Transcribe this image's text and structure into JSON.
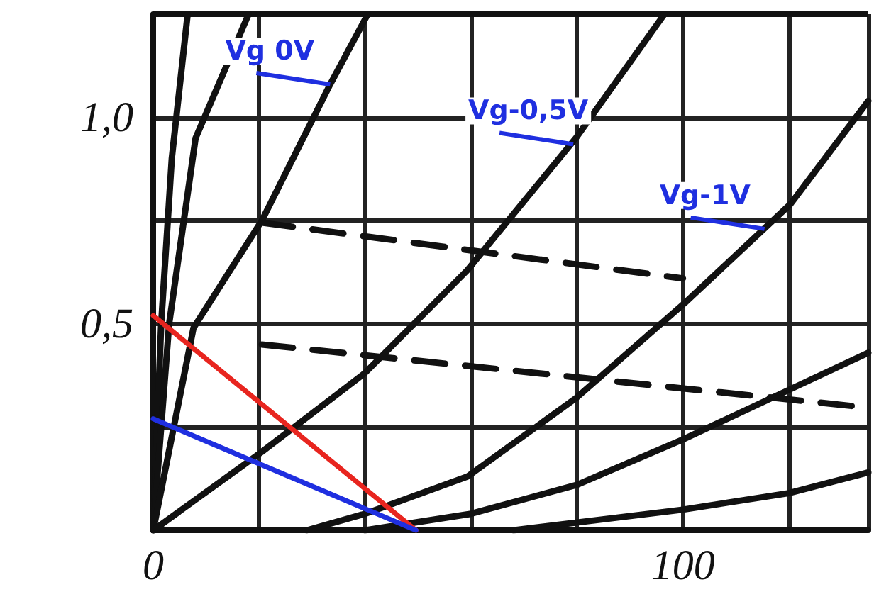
{
  "chart_data": {
    "type": "line",
    "xlim": [
      0,
      135
    ],
    "ylim": [
      0,
      1.25
    ],
    "xticks": [
      {
        "value": 0,
        "label": "0"
      },
      {
        "value": 20,
        "label": null
      },
      {
        "value": 40,
        "label": null
      },
      {
        "value": 60,
        "label": null
      },
      {
        "value": 80,
        "label": null
      },
      {
        "value": 100,
        "label": "100"
      },
      {
        "value": 120,
        "label": null
      }
    ],
    "yticks": [
      {
        "value": 0,
        "label": null
      },
      {
        "value": 0.25,
        "label": null
      },
      {
        "value": 0.5,
        "label": "0,5"
      },
      {
        "value": 0.75,
        "label": null
      },
      {
        "value": 1,
        "label": "1,0"
      },
      {
        "value": 1.25,
        "label": null
      }
    ],
    "grid": true,
    "marker": "none",
    "series": [
      {
        "color": "#111111",
        "x": [
          0,
          1.5,
          3.5,
          6.5
        ],
        "values": [
          0,
          0.5,
          0.9,
          1.25
        ]
      },
      {
        "color": "#111111",
        "x": [
          0,
          3,
          8,
          18
        ],
        "values": [
          0,
          0.5,
          0.95,
          1.25
        ]
      },
      {
        "color": "#111111",
        "x": [
          0,
          7.6,
          20.5,
          33.4,
          40.5
        ],
        "values": [
          0,
          0.49,
          0.75,
          1.08,
          1.25
        ]
      },
      {
        "color": "#111111",
        "x": [
          0,
          20.5,
          39.9,
          59.3,
          79.8,
          96.5
        ],
        "values": [
          0,
          0.19,
          0.38,
          0.63,
          0.95,
          1.25
        ]
      },
      {
        "color": "#111111",
        "x": [
          29,
          40,
          59.3,
          79.8,
          100.3,
          120.3,
          135
        ],
        "values": [
          0,
          0.04,
          0.13,
          0.32,
          0.55,
          0.79,
          1.04
        ]
      },
      {
        "color": "#111111",
        "x": [
          40,
          60,
          80,
          100,
          120,
          135
        ],
        "values": [
          0,
          0.04,
          0.11,
          0.22,
          0.34,
          0.43
        ]
      },
      {
        "color": "#111111",
        "x": [
          68,
          100,
          120,
          135
        ],
        "values": [
          0,
          0.05,
          0.09,
          0.14
        ]
      },
      {
        "color": "#111111",
        "line_style": "dashed",
        "x": [
          20.5,
          100
        ],
        "values": [
          0.745,
          0.61
        ]
      },
      {
        "color": "#111111",
        "line_style": "dashed",
        "x": [
          20.5,
          132.7
        ],
        "values": [
          0.45,
          0.3
        ]
      },
      {
        "color": "#e8251f",
        "x": [
          0,
          49.6
        ],
        "values": [
          0.52,
          0
        ]
      },
      {
        "color": "#1f2fe0",
        "x": [
          0,
          49.6
        ],
        "values": [
          0.27,
          0
        ]
      }
    ],
    "annotations": [
      {
        "text": "Vg 0V",
        "x": 33.4,
        "y": 1.08
      },
      {
        "text": "Vg-0,5V",
        "x": 79.3,
        "y": 0.935
      },
      {
        "text": "Vg-1V",
        "x": 115.4,
        "y": 0.73
      }
    ]
  }
}
